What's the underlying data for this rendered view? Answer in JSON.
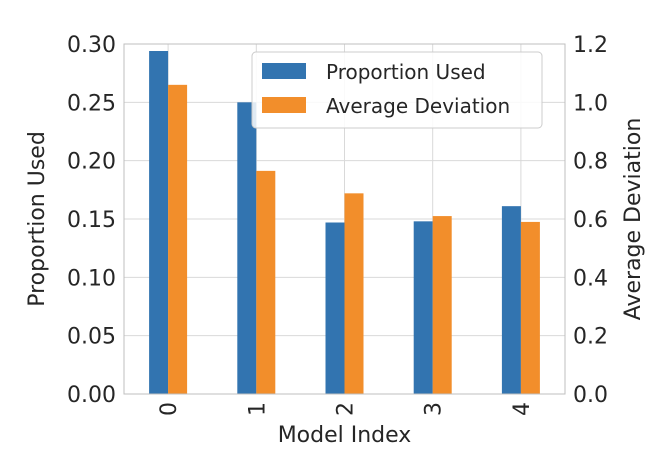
{
  "chart_data": {
    "type": "bar",
    "xlabel": "Model Index",
    "categories": [
      "0",
      "1",
      "2",
      "3",
      "4"
    ],
    "y_left": {
      "label": "Proportion Used",
      "ylim": [
        0,
        0.3
      ],
      "ticks": [
        0.0,
        0.05,
        0.1,
        0.15,
        0.2,
        0.25,
        0.3
      ],
      "tick_labels": [
        "0.00",
        "0.05",
        "0.10",
        "0.15",
        "0.20",
        "0.25",
        "0.30"
      ]
    },
    "y_right": {
      "label": "Average Deviation",
      "ylim": [
        0,
        1.2
      ],
      "ticks": [
        0.0,
        0.2,
        0.4,
        0.6,
        0.8,
        1.0,
        1.2
      ],
      "tick_labels": [
        "0.0",
        "0.2",
        "0.4",
        "0.6",
        "0.8",
        "1.0",
        "1.2"
      ]
    },
    "series": [
      {
        "name": "Proportion Used",
        "axis": "left",
        "color": "#3274b0",
        "values": [
          0.294,
          0.25,
          0.147,
          0.148,
          0.161
        ]
      },
      {
        "name": "Average Deviation",
        "axis": "right",
        "color": "#f28e2b",
        "values": [
          1.06,
          0.765,
          0.688,
          0.61,
          0.59
        ]
      }
    ],
    "legend": {
      "placement": "top-right"
    },
    "grid": true,
    "x_tick_rotation": "vertical"
  }
}
